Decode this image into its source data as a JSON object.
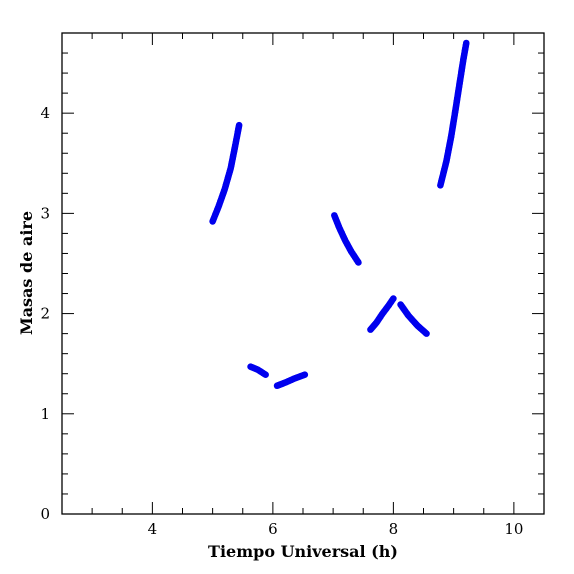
{
  "chart_data": {
    "type": "scatter",
    "xlabel": "Tiempo Universal (h)",
    "ylabel": "Masas de aire",
    "xlim": [
      2.5,
      10.5
    ],
    "ylim": [
      0,
      4.8
    ],
    "x_ticks": [
      4,
      6,
      8,
      10
    ],
    "y_ticks": [
      0,
      1,
      2,
      3,
      4
    ],
    "x_minor_step": 0.5,
    "y_minor_step": 0.2,
    "grid": false,
    "marker_color": "#0000ee",
    "series": [
      {
        "points": [
          [
            5.0,
            2.92
          ],
          [
            5.1,
            3.07
          ],
          [
            5.2,
            3.24
          ],
          [
            5.3,
            3.45
          ],
          [
            5.37,
            3.66
          ],
          [
            5.44,
            3.88
          ]
        ]
      },
      {
        "points": [
          [
            5.63,
            1.47
          ],
          [
            5.75,
            1.44
          ],
          [
            5.88,
            1.39
          ]
        ]
      },
      {
        "points": [
          [
            6.07,
            1.28
          ],
          [
            6.2,
            1.31
          ],
          [
            6.35,
            1.35
          ],
          [
            6.53,
            1.39
          ]
        ]
      },
      {
        "points": [
          [
            7.02,
            2.98
          ],
          [
            7.1,
            2.86
          ],
          [
            7.2,
            2.73
          ],
          [
            7.3,
            2.62
          ],
          [
            7.42,
            2.51
          ]
        ]
      },
      {
        "points": [
          [
            7.62,
            1.84
          ],
          [
            7.72,
            1.91
          ],
          [
            7.82,
            2.0
          ],
          [
            7.92,
            2.08
          ],
          [
            8.0,
            2.15
          ]
        ]
      },
      {
        "points": [
          [
            8.12,
            2.09
          ],
          [
            8.25,
            1.98
          ],
          [
            8.4,
            1.88
          ],
          [
            8.55,
            1.8
          ]
        ]
      },
      {
        "points": [
          [
            8.78,
            3.28
          ],
          [
            8.88,
            3.52
          ],
          [
            8.96,
            3.77
          ],
          [
            9.03,
            4.03
          ],
          [
            9.1,
            4.3
          ],
          [
            9.16,
            4.53
          ],
          [
            9.21,
            4.7
          ]
        ]
      }
    ]
  }
}
